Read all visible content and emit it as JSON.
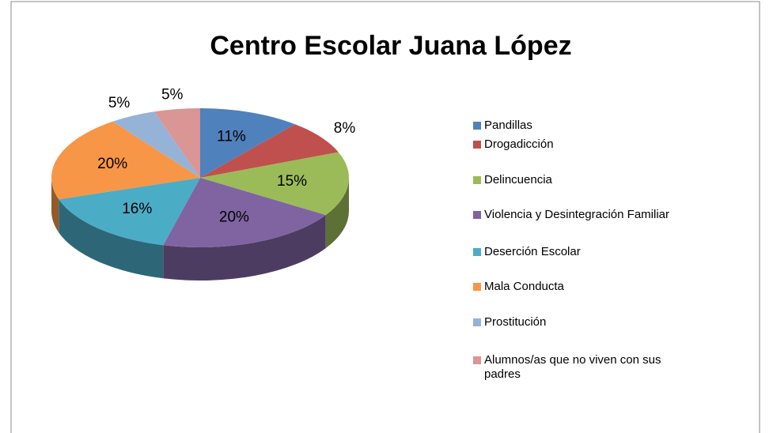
{
  "chart_data": {
    "type": "pie",
    "title": "Centro Escolar Juana López",
    "categories": [
      "Pandillas",
      "Drogadicción",
      "Delincuencia",
      "Violencia y Desintegración Familiar",
      "Deserción Escolar",
      "Mala Conducta",
      "Prostitución",
      "Alumnos/as que no viven con sus padres"
    ],
    "values": [
      11,
      8,
      15,
      20,
      16,
      20,
      5,
      5
    ],
    "value_labels": [
      "11%",
      "8%",
      "15%",
      "20%",
      "16%",
      "20%",
      "5%",
      "5%"
    ],
    "colors": [
      "#4f81bd",
      "#c0504d",
      "#9bbb59",
      "#8064a2",
      "#4bacc6",
      "#f79646",
      "#95b3d7",
      "#d99694"
    ],
    "legend": "right"
  }
}
